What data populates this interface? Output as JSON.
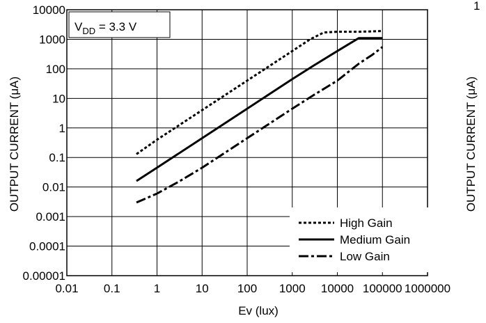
{
  "chart_data": {
    "type": "line",
    "title": "",
    "xlabel": "Ev (lux)",
    "ylabel": "OUTPUT CURRENT (μA)",
    "xscale": "log",
    "yscale": "log",
    "xlim": [
      0.01,
      1000000
    ],
    "ylim": [
      1e-05,
      10000
    ],
    "grid": true,
    "legend_position": "bottom-right",
    "x_tick_labels": [
      "0.01",
      "0.1",
      "1",
      "10",
      "100",
      "1000",
      "10000",
      "100000",
      "1000000"
    ],
    "y_tick_labels": [
      "0.00001",
      "0.0001",
      "0.001",
      "0.01",
      "0.1",
      "1",
      "10",
      "100",
      "1000",
      "10000"
    ],
    "annotation": {
      "prefix": "V",
      "subscript": "DD",
      "suffix": " = 3.3 V"
    },
    "series": [
      {
        "name": "High Gain",
        "style": "dotted",
        "color": "#000000",
        "points": [
          [
            0.35,
            0.13
          ],
          [
            1,
            0.4
          ],
          [
            10,
            4
          ],
          [
            100,
            40
          ],
          [
            1000,
            400
          ],
          [
            2500,
            1000
          ],
          [
            5000,
            1700
          ],
          [
            10000,
            1800
          ],
          [
            30000,
            1800
          ],
          [
            100000,
            1900
          ]
        ]
      },
      {
        "name": "Medium Gain",
        "style": "solid",
        "color": "#000000",
        "points": [
          [
            0.35,
            0.016
          ],
          [
            1,
            0.045
          ],
          [
            10,
            0.45
          ],
          [
            100,
            4.5
          ],
          [
            1000,
            45
          ],
          [
            3000,
            130
          ],
          [
            10000,
            400
          ],
          [
            30000,
            1100
          ],
          [
            100000,
            1100
          ]
        ]
      },
      {
        "name": "Low Gain",
        "style": "dashdot",
        "color": "#000000",
        "points": [
          [
            0.35,
            0.003
          ],
          [
            1,
            0.006
          ],
          [
            3,
            0.015
          ],
          [
            10,
            0.045
          ],
          [
            100,
            0.45
          ],
          [
            1000,
            4.5
          ],
          [
            3000,
            13
          ],
          [
            10000,
            40
          ],
          [
            30000,
            150
          ],
          [
            60000,
            300
          ],
          [
            100000,
            550
          ]
        ]
      }
    ]
  },
  "page": {
    "right_edge_text": "1",
    "right_axis_label": "OUTPUT CURRENT (μA)",
    "right_axis_label_2": "OUTPUT CURRENT (μA)"
  }
}
